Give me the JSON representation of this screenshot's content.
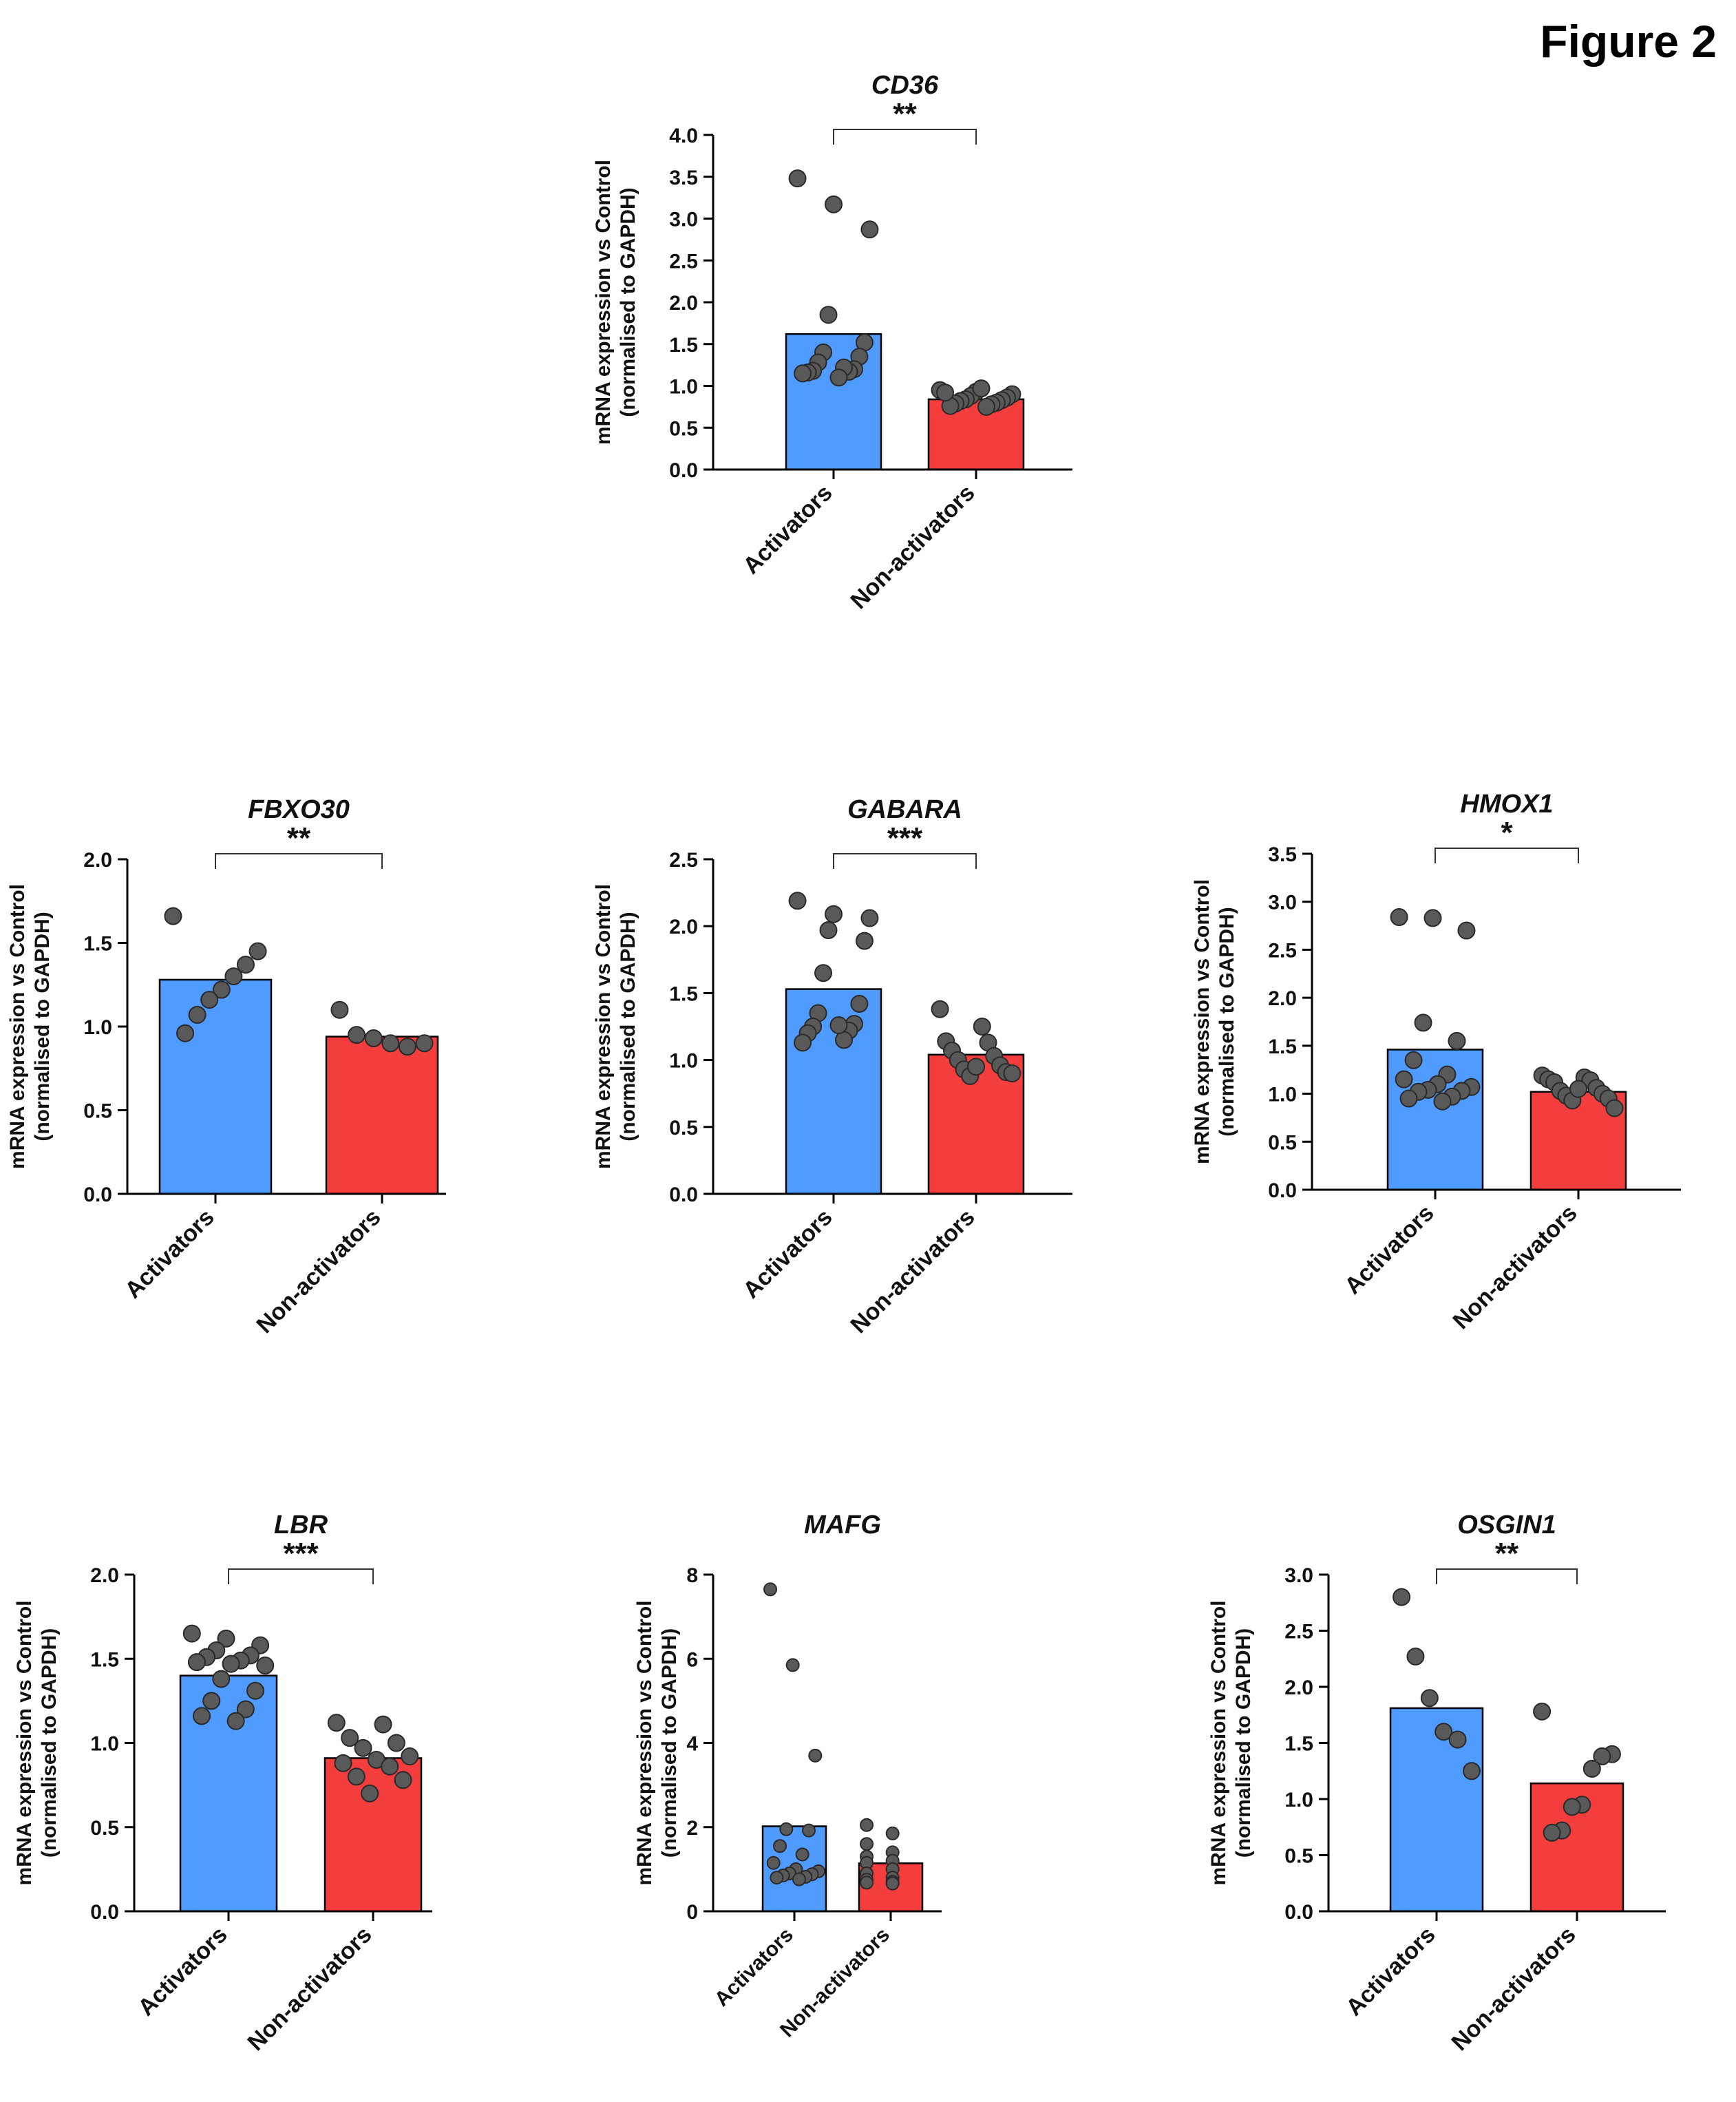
{
  "figure_label": "Figure 2",
  "colors": {
    "activators": "#4f9bff",
    "non_activators": "#f43e3e",
    "points": "#595959",
    "axis": "#000000"
  },
  "y_axis_label_line1": "mRNA expression vs Control",
  "y_axis_label_line2": "(normalised to GAPDH)",
  "chart_data": [
    {
      "type": "bar",
      "title": "CD36",
      "significance": "**",
      "categories": [
        "Activators",
        "Non-activators"
      ],
      "values": [
        1.62,
        0.84
      ],
      "ylim": [
        0,
        4.0
      ],
      "yticks": [
        0.0,
        0.5,
        1.0,
        1.5,
        2.0,
        2.5,
        3.0,
        3.5,
        4.0
      ],
      "tick_decimals": 1,
      "ylabel": "mRNA expression vs Control (normalised to GAPDH)",
      "points": [
        [
          3.48,
          3.17,
          2.87,
          1.85,
          1.52,
          1.4,
          1.35,
          1.28,
          1.2,
          1.18,
          1.17,
          1.16,
          1.22,
          1.15,
          1.1
        ],
        [
          0.95,
          0.93,
          0.9,
          0.88,
          0.86,
          0.84,
          0.83,
          0.82,
          0.8,
          0.79,
          0.78,
          0.76,
          0.75,
          0.92,
          0.97
        ]
      ]
    },
    {
      "type": "bar",
      "title": "FBXO30",
      "significance": "**",
      "categories": [
        "Activators",
        "Non-activators"
      ],
      "values": [
        1.28,
        0.94
      ],
      "ylim": [
        0,
        2.0
      ],
      "yticks": [
        0.0,
        0.5,
        1.0,
        1.5,
        2.0
      ],
      "tick_decimals": 1,
      "ylabel": "mRNA expression vs Control (normalised to GAPDH)",
      "points": [
        [
          1.66,
          1.45,
          1.37,
          1.3,
          1.22,
          1.16,
          1.07,
          0.96
        ],
        [
          1.1,
          0.95,
          0.93,
          0.9,
          0.88,
          0.9
        ]
      ]
    },
    {
      "type": "bar",
      "title": "GABARA",
      "significance": "***",
      "categories": [
        "Activators",
        "Non-activators"
      ],
      "values": [
        1.53,
        1.04
      ],
      "ylim": [
        0,
        2.5
      ],
      "yticks": [
        0.0,
        0.5,
        1.0,
        1.5,
        2.0,
        2.5
      ],
      "tick_decimals": 1,
      "ylabel": "mRNA expression vs Control (normalised to GAPDH)",
      "points": [
        [
          2.19,
          2.09,
          2.06,
          1.97,
          1.89,
          1.65,
          1.42,
          1.35,
          1.27,
          1.25,
          1.22,
          1.2,
          1.15,
          1.13,
          1.26
        ],
        [
          1.38,
          1.25,
          1.14,
          1.13,
          1.07,
          1.03,
          1.0,
          0.96,
          0.93,
          0.91,
          0.88,
          0.9,
          0.95
        ]
      ]
    },
    {
      "type": "bar",
      "title": "HMOX1",
      "significance": "*",
      "categories": [
        "Activators",
        "Non-activators"
      ],
      "values": [
        1.46,
        1.02
      ],
      "ylim": [
        0,
        3.5
      ],
      "yticks": [
        0.0,
        0.5,
        1.0,
        1.5,
        2.0,
        2.5,
        3.0,
        3.5
      ],
      "tick_decimals": 1,
      "ylabel": "mRNA expression vs Control (normalised to GAPDH)",
      "points": [
        [
          2.84,
          2.83,
          2.7,
          1.74,
          1.55,
          1.35,
          1.2,
          1.15,
          1.1,
          1.07,
          1.04,
          1.03,
          1.02,
          0.97,
          0.95,
          0.92
        ],
        [
          1.19,
          1.17,
          1.15,
          1.14,
          1.12,
          1.06,
          1.03,
          1.0,
          0.98,
          0.95,
          0.93,
          0.85,
          1.05
        ]
      ]
    },
    {
      "type": "bar",
      "title": "LBR",
      "significance": "***",
      "categories": [
        "Activators",
        "Non-activators"
      ],
      "values": [
        1.4,
        0.91
      ],
      "ylim": [
        0,
        2.0
      ],
      "yticks": [
        0.0,
        0.5,
        1.0,
        1.5,
        2.0
      ],
      "tick_decimals": 1,
      "ylabel": "mRNA expression vs Control (normalised to GAPDH)",
      "points": [
        [
          1.65,
          1.62,
          1.58,
          1.55,
          1.52,
          1.51,
          1.49,
          1.48,
          1.47,
          1.46,
          1.38,
          1.31,
          1.25,
          1.2,
          1.16,
          1.13
        ],
        [
          1.12,
          1.11,
          1.03,
          1.0,
          0.97,
          0.92,
          0.9,
          0.88,
          0.86,
          0.8,
          0.78,
          0.7
        ]
      ]
    },
    {
      "type": "bar",
      "title": "MAFG",
      "significance": "",
      "categories": [
        "Activators",
        "Non-activators"
      ],
      "values": [
        2.02,
        1.14
      ],
      "ylim": [
        0,
        8
      ],
      "yticks": [
        0,
        2,
        4,
        6,
        8
      ],
      "tick_decimals": 0,
      "ylabel": "mRNA expression vs Control (normalised to GAPDH)",
      "points": [
        [
          7.65,
          5.85,
          3.7,
          1.95,
          1.92,
          1.55,
          1.35,
          1.15,
          1.0,
          0.95,
          0.9,
          0.88,
          0.85,
          0.82,
          0.8,
          0.76
        ],
        [
          2.05,
          1.85,
          1.6,
          1.4,
          1.3,
          1.2,
          1.15,
          1.0,
          0.9,
          0.8,
          0.75,
          0.7,
          0.68,
          0.66
        ]
      ]
    },
    {
      "type": "bar",
      "title": "OSGIN1",
      "significance": "**",
      "categories": [
        "Activators",
        "Non-activators"
      ],
      "values": [
        1.81,
        1.14
      ],
      "ylim": [
        0,
        3.0
      ],
      "yticks": [
        0.0,
        0.5,
        1.0,
        1.5,
        2.0,
        2.5,
        3.0
      ],
      "tick_decimals": 1,
      "ylabel": "mRNA expression vs Control (normalised to GAPDH)",
      "points": [
        [
          2.8,
          2.27,
          1.9,
          1.6,
          1.53,
          1.25
        ],
        [
          1.78,
          1.4,
          1.38,
          1.27,
          0.95,
          0.93,
          0.72,
          0.7
        ]
      ]
    }
  ]
}
